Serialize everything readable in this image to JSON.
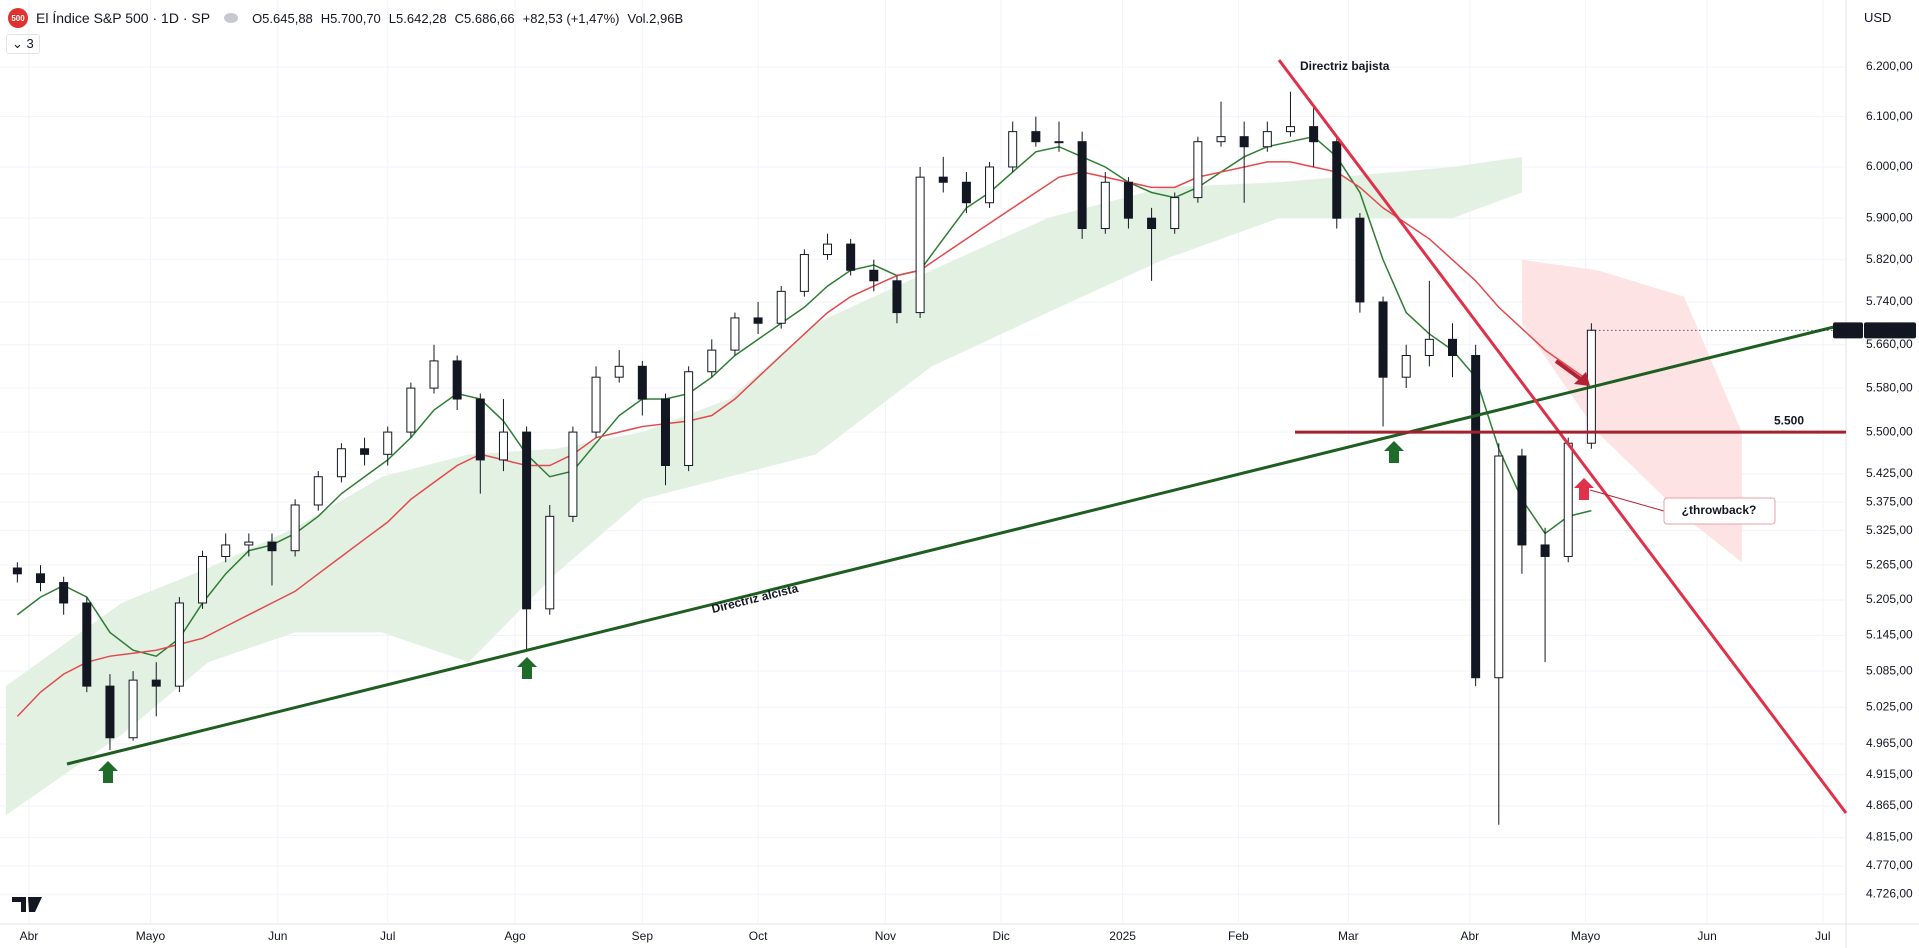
{
  "header": {
    "logo": "500",
    "title": "El Índice S&P 500 · 1D · SP",
    "open": "O5.645,88",
    "high": "H5.700,70",
    "low": "L5.642,28",
    "close": "C5.686,66",
    "change": "+82,53 (+1,47%)",
    "volume": "Vol.2,96B",
    "indicators_count": "3",
    "currency": "USD"
  },
  "chart_data": {
    "type": "candlestick",
    "log_scale": true,
    "grid": true,
    "up_color": "#ffffff",
    "down_color": "#131722",
    "x": [
      2,
      6,
      10,
      14,
      18,
      22,
      26,
      30,
      34,
      38,
      42,
      46,
      50,
      54,
      58,
      62,
      66,
      70,
      74,
      78,
      82,
      86,
      90,
      94,
      98,
      102,
      106,
      110,
      114,
      118,
      122,
      126,
      130,
      134,
      138,
      142,
      146,
      150,
      154,
      158,
      162,
      166,
      170,
      174,
      178,
      182,
      186,
      190,
      194,
      198,
      202,
      206,
      210,
      214,
      218,
      222,
      226,
      230,
      234,
      238,
      242,
      246,
      250,
      254,
      258,
      262,
      266,
      270,
      274
    ],
    "open": [
      5260,
      5250,
      5235,
      5200,
      5060,
      4975,
      5070,
      5060,
      5200,
      5280,
      5300,
      5305,
      5290,
      5370,
      5420,
      5470,
      5460,
      5500,
      5580,
      5630,
      5560,
      5450,
      5500,
      5190,
      5350,
      5500,
      5600,
      5620,
      5560,
      5440,
      5610,
      5650,
      5710,
      5700,
      5760,
      5830,
      5850,
      5800,
      5780,
      5720,
      5980,
      5970,
      5930,
      6000,
      6070,
      6050,
      6050,
      5880,
      5970,
      5900,
      5880,
      5940,
      6050,
      6060,
      6040,
      6070,
      6080,
      6050,
      5900,
      5740,
      5600,
      5640,
      5670,
      5640,
      5074,
      5457,
      5300,
      5280,
      5480
    ],
    "high": [
      5270,
      5265,
      5245,
      5210,
      5080,
      5085,
      5100,
      5210,
      5290,
      5320,
      5320,
      5320,
      5380,
      5430,
      5480,
      5490,
      5510,
      5590,
      5660,
      5640,
      5570,
      5560,
      5510,
      5370,
      5510,
      5620,
      5650,
      5630,
      5570,
      5620,
      5670,
      5720,
      5740,
      5770,
      5840,
      5870,
      5860,
      5820,
      5790,
      6000,
      6020,
      5990,
      6010,
      6090,
      6100,
      6090,
      6070,
      5990,
      5980,
      5920,
      5950,
      6060,
      6130,
      6090,
      6090,
      6150,
      6120,
      6060,
      5910,
      5750,
      5660,
      5780,
      5700,
      5660,
      5480,
      5470,
      5330,
      5490,
      5700
    ],
    "low": [
      5235,
      5220,
      5180,
      5050,
      4955,
      4970,
      5010,
      5050,
      5190,
      5270,
      5280,
      5230,
      5280,
      5360,
      5410,
      5440,
      5440,
      5490,
      5570,
      5540,
      5390,
      5430,
      5120,
      5180,
      5340,
      5490,
      5590,
      5530,
      5405,
      5430,
      5600,
      5640,
      5680,
      5690,
      5750,
      5820,
      5790,
      5760,
      5700,
      5710,
      5950,
      5910,
      5920,
      5990,
      6040,
      6030,
      5860,
      5870,
      5880,
      5780,
      5870,
      5930,
      6040,
      5930,
      6030,
      6060,
      6000,
      5880,
      5720,
      5510,
      5580,
      5620,
      5600,
      5060,
      4835,
      5250,
      5100,
      5270,
      5470
    ],
    "close": [
      5250,
      5235,
      5200,
      5060,
      4975,
      5070,
      5060,
      5200,
      5280,
      5300,
      5305,
      5290,
      5370,
      5420,
      5470,
      5460,
      5500,
      5580,
      5630,
      5560,
      5450,
      5500,
      5190,
      5350,
      5500,
      5600,
      5620,
      5560,
      5440,
      5610,
      5650,
      5710,
      5700,
      5760,
      5830,
      5850,
      5800,
      5780,
      5720,
      5980,
      5970,
      5930,
      6000,
      6070,
      6050,
      6050,
      5880,
      5970,
      5900,
      5880,
      5940,
      6050,
      6060,
      6040,
      6070,
      6080,
      6050,
      5900,
      5740,
      5600,
      5640,
      5670,
      5640,
      5074,
      5457,
      5300,
      5280,
      5480,
      5687
    ],
    "series": [
      {
        "color": "#2e7d32",
        "values": [
          5180,
          5210,
          5230,
          5210,
          5150,
          5120,
          5110,
          5140,
          5200,
          5250,
          5290,
          5300,
          5320,
          5350,
          5390,
          5420,
          5450,
          5490,
          5540,
          5570,
          5560,
          5520,
          5460,
          5420,
          5430,
          5480,
          5530,
          5560,
          5560,
          5570,
          5600,
          5640,
          5670,
          5700,
          5730,
          5770,
          5800,
          5810,
          5790,
          5800,
          5860,
          5920,
          5950,
          5990,
          6030,
          6040,
          6020,
          6000,
          5970,
          5950,
          5940,
          5960,
          5990,
          6020,
          6040,
          6050,
          6060,
          6020,
          5950,
          5820,
          5720,
          5680,
          5650,
          5600,
          5470,
          5380,
          5320,
          5350,
          5360
        ]
      },
      {
        "color": "#e5484d",
        "values": [
          5010,
          5050,
          5080,
          5100,
          5110,
          5115,
          5120,
          5130,
          5140,
          5160,
          5180,
          5200,
          5220,
          5250,
          5280,
          5310,
          5340,
          5380,
          5410,
          5440,
          5460,
          5450,
          5440,
          5440,
          5460,
          5490,
          5500,
          5510,
          5515,
          5520,
          5530,
          5560,
          5600,
          5640,
          5680,
          5720,
          5750,
          5770,
          5790,
          5800,
          5830,
          5860,
          5890,
          5920,
          5950,
          5980,
          5990,
          5980,
          5970,
          5960,
          5960,
          5980,
          5990,
          6000,
          6010,
          6010,
          6000,
          5990,
          5960,
          5920,
          5890,
          5860,
          5820,
          5780,
          5730,
          5690,
          5650,
          5620,
          5590
        ]
      }
    ],
    "clouds": [
      {
        "color": "#e3f1e3",
        "x": [
          0,
          20,
          35,
          50,
          65,
          80,
          95,
          110,
          125,
          140,
          160,
          180,
          200,
          220,
          250,
          262
        ],
        "upper": [
          5060,
          5200,
          5260,
          5330,
          5420,
          5460,
          5470,
          5500,
          5560,
          5700,
          5800,
          5900,
          5960,
          5970,
          6000,
          6020
        ],
        "lower": [
          4850,
          4980,
          5100,
          5150,
          5150,
          5100,
          5250,
          5380,
          5420,
          5460,
          5620,
          5720,
          5820,
          5900,
          5900,
          5950
        ]
      },
      {
        "color": "#fde3e3",
        "x": [
          262,
          275,
          290,
          300
        ],
        "upper": [
          5820,
          5800,
          5750,
          5500
        ],
        "lower": [
          5700,
          5500,
          5350,
          5270
        ]
      }
    ],
    "xlim": [
      -1,
      318
    ],
    "ylim": [
      4680,
      6338
    ],
    "xticks": [
      {
        "value": 4,
        "label": "Abr"
      },
      {
        "value": 25,
        "label": "Mayo"
      },
      {
        "value": 47,
        "label": "Jun"
      },
      {
        "value": 66,
        "label": "Jul"
      },
      {
        "value": 88,
        "label": "Ago"
      },
      {
        "value": 110,
        "label": "Sep"
      },
      {
        "value": 130,
        "label": "Oct"
      },
      {
        "value": 152,
        "label": "Nov"
      },
      {
        "value": 172,
        "label": "Dic"
      },
      {
        "value": 193,
        "label": "2025"
      },
      {
        "value": 213,
        "label": "Feb"
      },
      {
        "value": 232,
        "label": "Mar"
      },
      {
        "value": 253,
        "label": "Abr"
      },
      {
        "value": 273,
        "label": "Mayo"
      },
      {
        "value": 294,
        "label": "Jun"
      },
      {
        "value": 314,
        "label": "Jul"
      }
    ],
    "yticks": [
      {
        "value": 6200,
        "label": "6.200,00"
      },
      {
        "value": 6100,
        "label": "6.100,00"
      },
      {
        "value": 6000,
        "label": "6.000,00"
      },
      {
        "value": 5900,
        "label": "5.900,00"
      },
      {
        "value": 5820,
        "label": "5.820,00"
      },
      {
        "value": 5740,
        "label": "5.740,00"
      },
      {
        "value": 5660,
        "label": "5.660,00"
      },
      {
        "value": 5580,
        "label": "5.580,00"
      },
      {
        "value": 5500,
        "label": "5.500,00"
      },
      {
        "value": 5425,
        "label": "5.425,00"
      },
      {
        "value": 5375,
        "label": "5.375,00"
      },
      {
        "value": 5325,
        "label": "5.325,00"
      },
      {
        "value": 5265,
        "label": "5.265,00"
      },
      {
        "value": 5205,
        "label": "5.205,00"
      },
      {
        "value": 5145,
        "label": "5.145,00"
      },
      {
        "value": 5085,
        "label": "5.085,00"
      },
      {
        "value": 5025,
        "label": "5.025,00"
      },
      {
        "value": 4965,
        "label": "4.965,00"
      },
      {
        "value": 4915,
        "label": "4.915,00"
      },
      {
        "value": 4865,
        "label": "4.865,00"
      },
      {
        "value": 4815,
        "label": "4.815,00"
      },
      {
        "value": 4770,
        "label": "4.770,00"
      },
      {
        "value": 4726,
        "label": "4.726,00"
      }
    ],
    "last_price": {
      "symbol": "SPX",
      "value": 5686.66,
      "label": "5.686,66"
    },
    "level": {
      "value": 5500,
      "label": "5.500",
      "color": "#a3202e"
    },
    "annotations": {
      "bearish": "Directriz bajista",
      "bullish": "Directriz alcista",
      "question": "¿throwback?"
    }
  }
}
